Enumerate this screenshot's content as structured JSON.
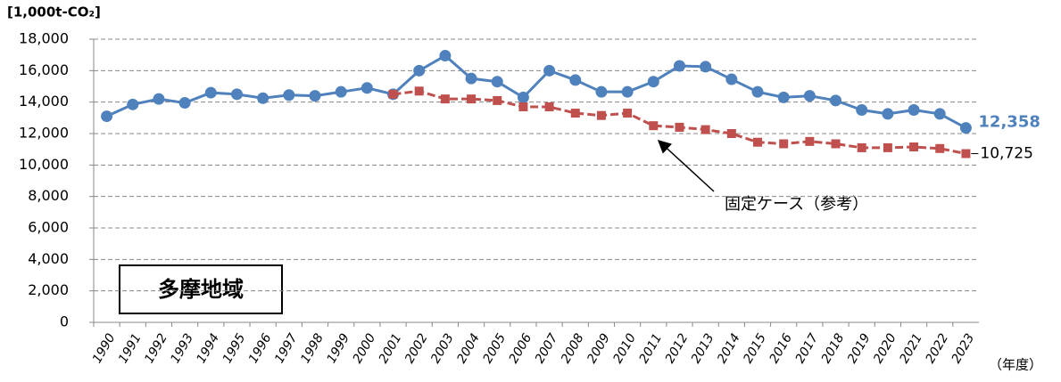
{
  "chart_data": {
    "type": "line",
    "title": "多摩地域",
    "y_label": "[1,000t-CO₂]",
    "x_label": "（年度）",
    "categories": [
      "1990",
      "1991",
      "1992",
      "1993",
      "1994",
      "1995",
      "1996",
      "1997",
      "1998",
      "1999",
      "2000",
      "2001",
      "2002",
      "2003",
      "2004",
      "2005",
      "2006",
      "2007",
      "2008",
      "2009",
      "2010",
      "2011",
      "2012",
      "2013",
      "2014",
      "2015",
      "2016",
      "2017",
      "2018",
      "2019",
      "2020",
      "2021",
      "2022",
      "2023"
    ],
    "series": [
      {
        "color": "#4f81bd",
        "marker": "circle",
        "values": [
          13100,
          13850,
          14200,
          13950,
          14600,
          14500,
          14250,
          14450,
          14400,
          14650,
          14900,
          14500,
          16000,
          16950,
          15500,
          15300,
          14300,
          16000,
          15400,
          14650,
          14650,
          15300,
          16300,
          16250,
          15450,
          14650,
          14300,
          14400,
          14100,
          13500,
          13250,
          13500,
          13250,
          12358
        ],
        "value_labels": [
          null,
          null,
          null,
          null,
          null,
          null,
          null,
          null,
          null,
          null,
          null,
          null,
          null,
          null,
          null,
          null,
          null,
          null,
          null,
          null,
          null,
          null,
          null,
          null,
          null,
          null,
          null,
          null,
          null,
          null,
          null,
          null,
          null,
          "12,358"
        ]
      },
      {
        "name": "固定ケース（参考）",
        "color": "#c0504d",
        "marker": "square",
        "values": [
          null,
          null,
          null,
          null,
          null,
          null,
          null,
          null,
          null,
          null,
          null,
          14500,
          14700,
          14200,
          14200,
          14100,
          13700,
          13700,
          13300,
          13150,
          13300,
          12500,
          12400,
          12250,
          12000,
          11450,
          11350,
          11500,
          11350,
          11100,
          11100,
          11150,
          11050,
          10725
        ],
        "value_labels": [
          null,
          null,
          null,
          null,
          null,
          null,
          null,
          null,
          null,
          null,
          null,
          null,
          null,
          null,
          null,
          null,
          null,
          null,
          null,
          null,
          null,
          null,
          null,
          null,
          null,
          null,
          null,
          null,
          null,
          null,
          null,
          null,
          null,
          "10,725"
        ]
      }
    ],
    "ylim": [
      0,
      18000
    ],
    "yticks": [
      0,
      {
        "value": 2000,
        "label": "2,000"
      },
      {
        "value": 4000,
        "label": "4,000"
      },
      {
        "value": 6000,
        "label": "6,000"
      },
      {
        "value": 8000,
        "label": "8,000"
      },
      {
        "value": 10000,
        "label": "10,000"
      },
      {
        "value": 12000,
        "label": "12,000"
      },
      {
        "value": 14000,
        "label": "14,000"
      },
      {
        "value": 16000,
        "label": "16,000"
      },
      {
        "value": 18000,
        "label": "18,000"
      }
    ],
    "grid": true
  }
}
